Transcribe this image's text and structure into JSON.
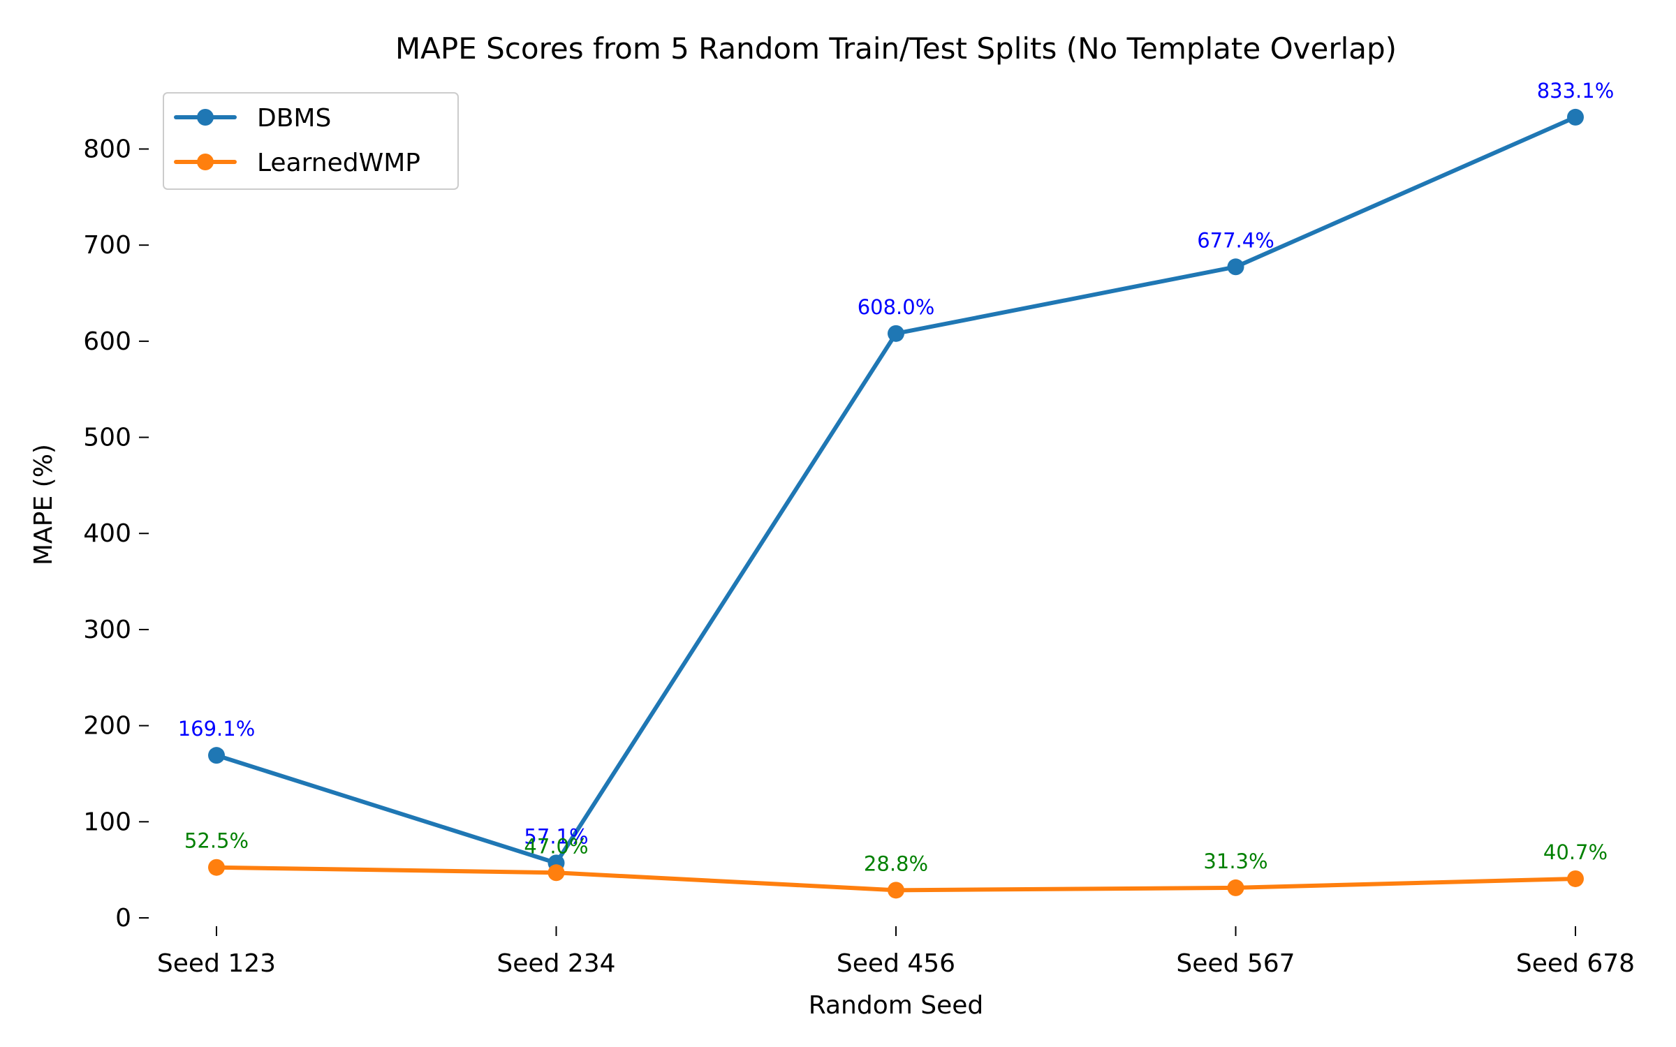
{
  "chart_data": {
    "type": "line",
    "title": "MAPE Scores from 5 Random Train/Test Splits (No Template Overlap)",
    "xlabel": "Random Seed",
    "ylabel": "MAPE (%)",
    "categories": [
      "Seed 123",
      "Seed 234",
      "Seed 456",
      "Seed 567",
      "Seed 678"
    ],
    "ylim": [
      -10,
      870
    ],
    "yticks": [
      0,
      100,
      200,
      300,
      400,
      500,
      600,
      700,
      800
    ],
    "grid": false,
    "legend_position": "top-left",
    "series": [
      {
        "name": "DBMS",
        "color": "#1f77b4",
        "label_color": "#0000ff",
        "values": [
          169.1,
          57.1,
          608.0,
          677.4,
          833.1
        ],
        "labels": [
          "169.1%",
          "57.1%",
          "608.0%",
          "677.4%",
          "833.1%"
        ]
      },
      {
        "name": "LearnedWMP",
        "color": "#ff7f0e",
        "label_color": "#008000",
        "values": [
          52.5,
          47.0,
          28.8,
          31.3,
          40.7
        ],
        "labels": [
          "52.5%",
          "47.0%",
          "28.8%",
          "31.3%",
          "40.7%"
        ]
      }
    ]
  }
}
